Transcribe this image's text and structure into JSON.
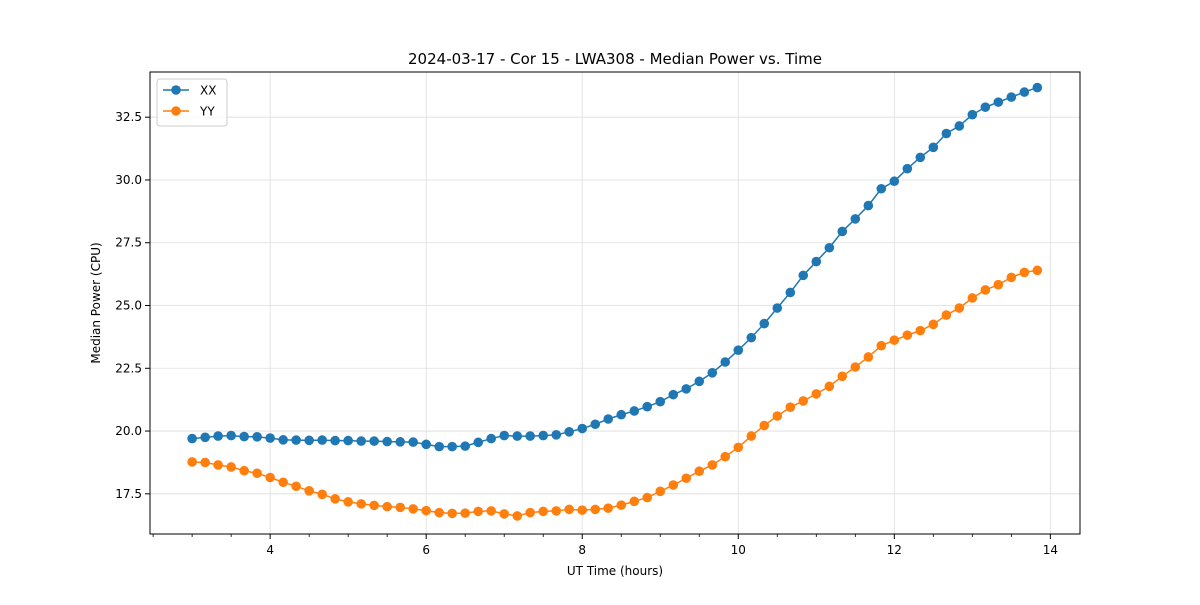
{
  "chart_data": {
    "type": "line",
    "title": "2024-03-17 - Cor 15 - LWA308 - Median Power vs. Time",
    "xlabel": "UT Time (hours)",
    "ylabel": "Median Power (CPU)",
    "xlim": [
      2.46,
      14.38
    ],
    "ylim": [
      15.9,
      34.3
    ],
    "xticks": [
      4,
      6,
      8,
      10,
      12,
      14
    ],
    "xtick_labels": [
      "4",
      "6",
      "8",
      "10",
      "12",
      "14"
    ],
    "yticks": [
      17.5,
      20.0,
      22.5,
      25.0,
      27.5,
      30.0,
      32.5
    ],
    "ytick_labels": [
      "17.5",
      "20.0",
      "22.5",
      "25.0",
      "27.5",
      "30.0",
      "32.5"
    ],
    "grid": true,
    "legend_position": "top-left",
    "x": [
      3.0,
      3.167,
      3.333,
      3.5,
      3.667,
      3.833,
      4.0,
      4.167,
      4.333,
      4.5,
      4.667,
      4.833,
      5.0,
      5.167,
      5.333,
      5.5,
      5.667,
      5.833,
      6.0,
      6.167,
      6.333,
      6.5,
      6.667,
      6.833,
      7.0,
      7.167,
      7.333,
      7.5,
      7.667,
      7.833,
      8.0,
      8.167,
      8.333,
      8.5,
      8.667,
      8.833,
      9.0,
      9.167,
      9.333,
      9.5,
      9.667,
      9.833,
      10.0,
      10.167,
      10.333,
      10.5,
      10.667,
      10.833,
      11.0,
      11.167,
      11.333,
      11.5,
      11.667,
      11.833,
      12.0,
      12.167,
      12.333,
      12.5,
      12.667,
      12.833,
      13.0,
      13.167,
      13.333,
      13.5,
      13.667,
      13.833
    ],
    "series": [
      {
        "name": "XX",
        "color": "#1f77b4",
        "values": [
          19.7,
          19.75,
          19.8,
          19.82,
          19.78,
          19.77,
          19.72,
          19.65,
          19.64,
          19.63,
          19.64,
          19.62,
          19.62,
          19.6,
          19.6,
          19.58,
          19.57,
          19.56,
          19.47,
          19.38,
          19.38,
          19.4,
          19.55,
          19.7,
          19.82,
          19.8,
          19.8,
          19.82,
          19.85,
          19.97,
          20.1,
          20.27,
          20.48,
          20.65,
          20.8,
          20.97,
          21.17,
          21.45,
          21.68,
          21.98,
          22.32,
          22.75,
          23.22,
          23.72,
          24.28,
          24.9,
          25.52,
          26.2,
          26.75,
          27.3,
          27.95,
          28.45,
          28.98,
          29.65,
          29.95,
          30.45,
          30.9,
          31.3,
          31.85,
          32.15,
          32.6,
          32.9,
          33.1,
          33.3,
          33.5,
          33.68
        ]
      },
      {
        "name": "YY",
        "color": "#ff7f0e",
        "values": [
          18.77,
          18.75,
          18.65,
          18.57,
          18.42,
          18.32,
          18.15,
          17.96,
          17.8,
          17.62,
          17.48,
          17.3,
          17.18,
          17.1,
          17.04,
          16.99,
          16.96,
          16.9,
          16.83,
          16.75,
          16.72,
          16.73,
          16.8,
          16.82,
          16.7,
          16.62,
          16.75,
          16.8,
          16.82,
          16.88,
          16.85,
          16.88,
          16.93,
          17.05,
          17.2,
          17.35,
          17.6,
          17.85,
          18.12,
          18.4,
          18.65,
          18.98,
          19.35,
          19.8,
          20.22,
          20.6,
          20.95,
          21.2,
          21.48,
          21.78,
          22.18,
          22.55,
          22.95,
          23.4,
          23.62,
          23.82,
          24.0,
          24.25,
          24.62,
          24.9,
          25.3,
          25.62,
          25.83,
          26.12,
          26.32,
          26.4
        ]
      }
    ]
  }
}
